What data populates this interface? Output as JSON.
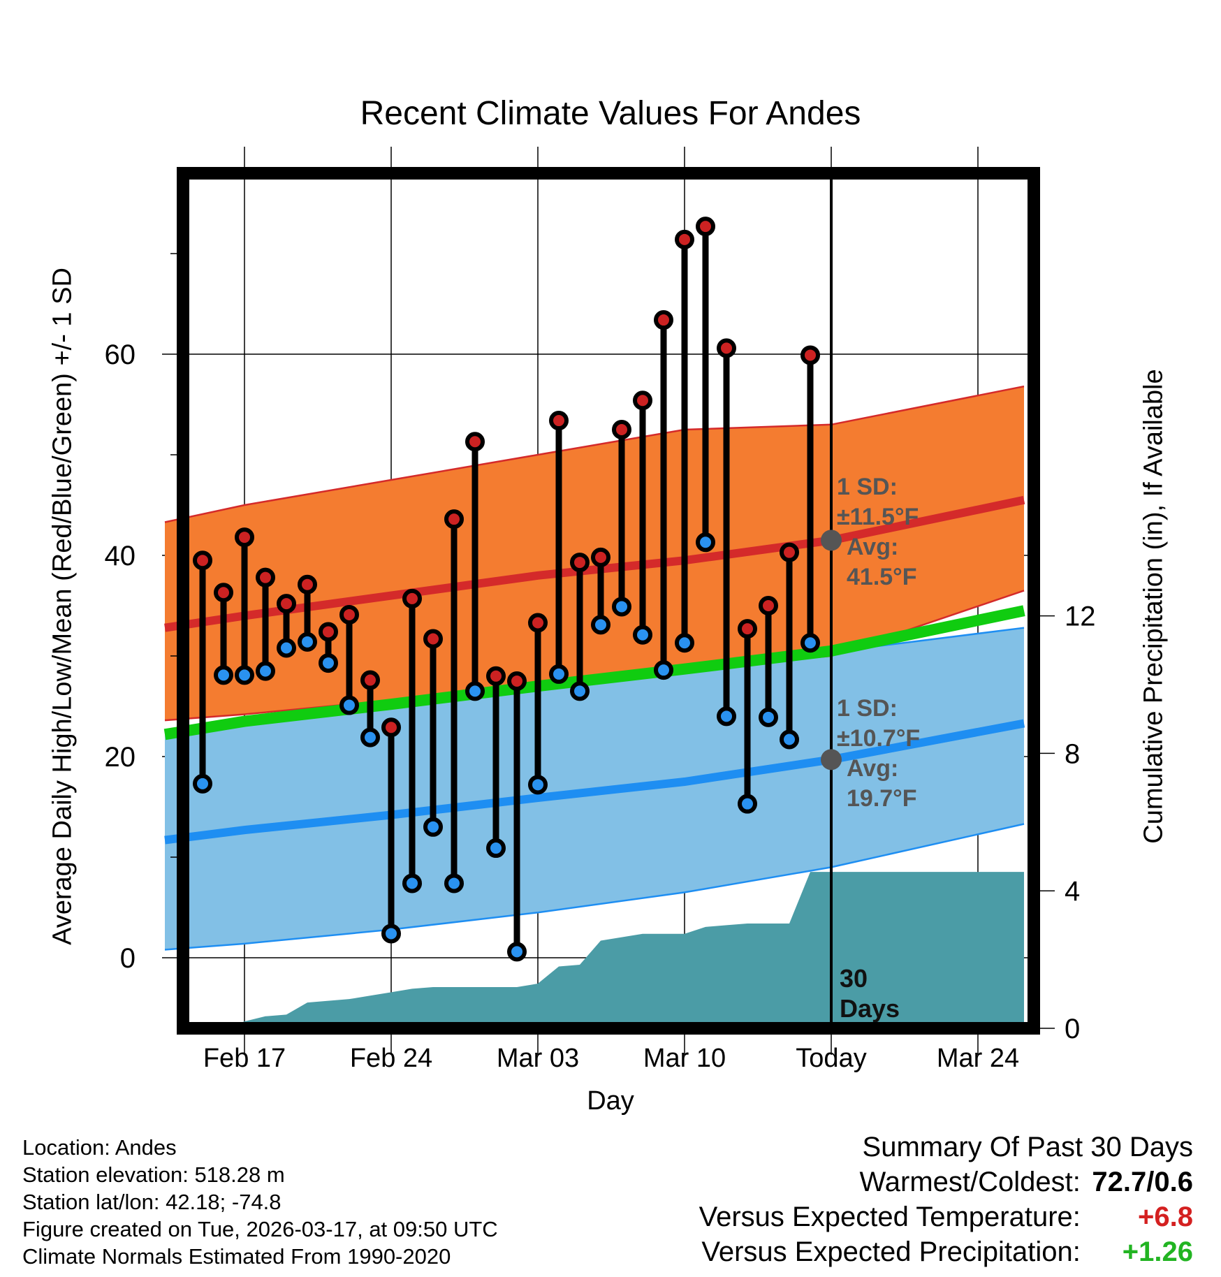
{
  "title": "Recent Climate Values For Andes",
  "y_axis_left_label": "Average Daily High/Low/Mean (Red/Blue/Green) +/- 1 SD",
  "y_axis_right_label": "Cumulative Precipitation (in), If Available",
  "x_axis_label": "Day",
  "colors": {
    "high_band": "#f47c30",
    "high_line": "#d42a2a",
    "low_band": "#82c0e6",
    "low_line": "#1e8ef2",
    "mean_line": "#10cc10",
    "precip": "#4b9ca6",
    "high_marker": "#cc2222",
    "low_marker": "#2a92f0",
    "normal_marker": "#555555"
  },
  "footer": {
    "location": "Location: Andes",
    "elevation": "Station elevation: 518.28 m",
    "latlon": "Station lat/lon: 42.18; -74.8",
    "created": "Figure created on Tue, 2026-03-17, at 09:50 UTC",
    "normals": "Climate Normals Estimated From 1990-2020"
  },
  "summary": {
    "heading": "Summary Of Past 30 Days",
    "warm_cold_label": "Warmest/Coldest:",
    "warm_cold_value": "72.7/0.6",
    "temp_label": "Versus Expected Temperature:",
    "temp_value": "+6.8",
    "precip_label": "Versus Expected Precipitation:",
    "precip_value": "+1.26"
  },
  "chart_data": {
    "type": "line",
    "title": "Recent Climate Values For Andes",
    "xlabel": "Day",
    "ylabel": "Average Daily High/Low/Mean (Red/Blue/Green) +/- 1 SD",
    "y2label": "Cumulative Precipitation (in), If Available",
    "xlim": [
      -3.8,
      37.2
    ],
    "ylim": [
      -7,
      77
    ],
    "y2lim": [
      0,
      24.05
    ],
    "x_ticks": [
      {
        "day": 0,
        "label": "Feb 17"
      },
      {
        "day": 7,
        "label": "Feb 24"
      },
      {
        "day": 14,
        "label": "Mar 03"
      },
      {
        "day": 21,
        "label": "Mar 10"
      },
      {
        "day": 28,
        "label": "Today"
      },
      {
        "day": 35,
        "label": "Mar 24"
      }
    ],
    "y_ticks": [
      0,
      20,
      40,
      60
    ],
    "y_minor_ticks": [
      10,
      30,
      50,
      70
    ],
    "y2_ticks": [
      0,
      4,
      8,
      12
    ],
    "today_day": 28,
    "today_label_1": "30",
    "today_label_2": "Days",
    "daily": {
      "day": [
        -2,
        -1,
        0,
        1,
        2,
        3,
        4,
        5,
        6,
        7,
        8,
        9,
        10,
        11,
        12,
        13,
        14,
        15,
        16,
        17,
        18,
        19,
        20,
        21,
        22,
        23,
        24,
        25,
        26,
        27
      ],
      "high": [
        39.5,
        36.3,
        41.8,
        37.8,
        35.2,
        37.1,
        32.4,
        34.1,
        27.6,
        22.9,
        35.7,
        31.7,
        43.6,
        51.3,
        28.0,
        27.5,
        33.3,
        53.4,
        39.3,
        39.8,
        52.5,
        55.4,
        63.4,
        71.4,
        72.7,
        60.6,
        32.7,
        35.0,
        40.3,
        59.9
      ],
      "low": [
        17.3,
        28.1,
        28.1,
        28.5,
        30.8,
        31.4,
        29.3,
        25.1,
        21.9,
        2.4,
        7.4,
        13.0,
        7.4,
        26.5,
        10.9,
        0.6,
        17.2,
        28.2,
        26.5,
        33.1,
        34.9,
        32.1,
        28.6,
        31.3,
        41.3,
        24.0,
        15.3,
        23.9,
        21.7,
        31.3
      ]
    },
    "normals": {
      "day": [
        -3.8,
        0,
        7,
        14,
        21,
        28,
        37.2
      ],
      "high_avg": [
        32.8,
        34.0,
        36.0,
        38.0,
        39.5,
        41.5,
        45.5
      ],
      "high_plus": [
        43.3,
        45.0,
        47.5,
        50.0,
        52.5,
        53.0,
        56.8
      ],
      "high_minus": [
        23.6,
        24.2,
        25.6,
        27.4,
        28.7,
        30.0,
        36.5
      ],
      "mean": [
        22.2,
        23.5,
        25.2,
        27.0,
        28.7,
        30.5,
        34.5
      ],
      "low_avg": [
        11.7,
        12.7,
        14.2,
        15.9,
        17.5,
        19.7,
        23.3
      ],
      "low_plus": [
        22.5,
        23.7,
        25.0,
        27.0,
        28.8,
        30.4,
        32.8
      ],
      "low_minus": [
        0.8,
        1.4,
        2.8,
        4.5,
        6.5,
        9.0,
        13.3
      ]
    },
    "normal_annotations": [
      {
        "series": "high",
        "sd_label": "1 SD:",
        "sd_value": "±11.5°F",
        "avg_label": "Avg:",
        "avg_value": "41.5°F",
        "avg": 41.5
      },
      {
        "series": "low",
        "sd_label": "1 SD:",
        "sd_value": "±10.7°F",
        "avg_label": "Avg:",
        "avg_value": "19.7°F",
        "avg": 19.7
      }
    ],
    "precip_cumulative": {
      "day": [
        -2.3,
        -1,
        0,
        1,
        2,
        3,
        4,
        5,
        6,
        7,
        8,
        9,
        10,
        11,
        12,
        13,
        14,
        15,
        16,
        17,
        18,
        19,
        20,
        21,
        22,
        23,
        24,
        25,
        26,
        27,
        37.2
      ],
      "in": [
        0,
        0,
        0.2,
        0.35,
        0.4,
        0.75,
        0.8,
        0.85,
        0.95,
        1.05,
        1.15,
        1.2,
        1.2,
        1.2,
        1.2,
        1.2,
        1.3,
        1.8,
        1.85,
        2.55,
        2.65,
        2.75,
        2.75,
        2.75,
        2.95,
        3.0,
        3.05,
        3.05,
        3.05,
        4.55,
        4.55
      ]
    }
  }
}
